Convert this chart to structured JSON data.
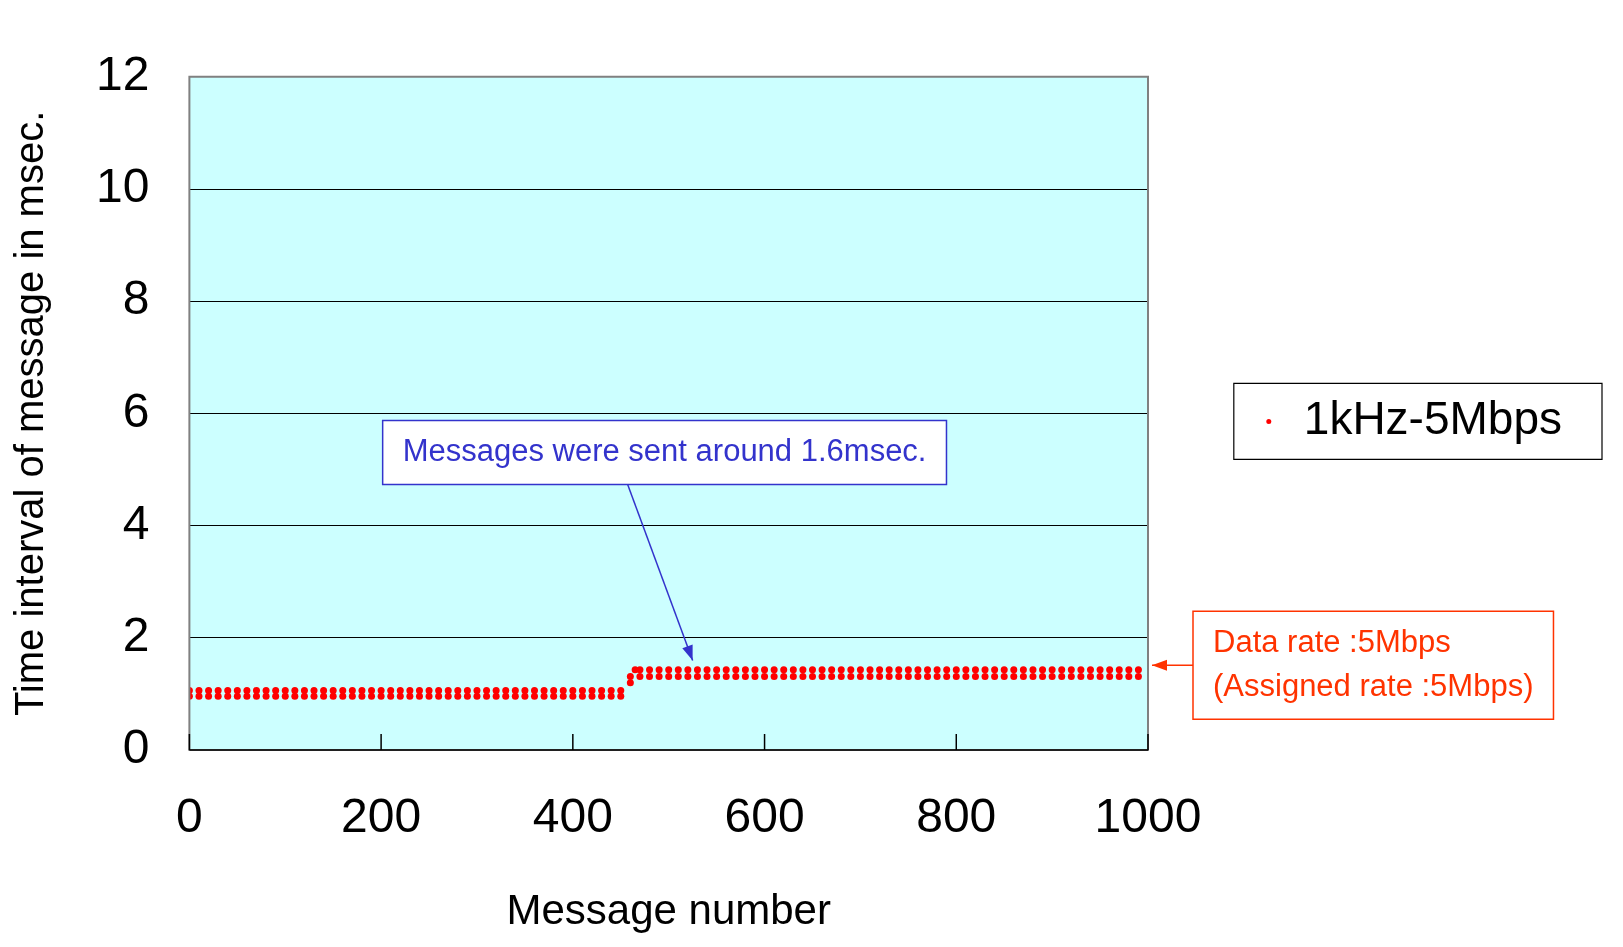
{
  "chart_data": {
    "type": "scatter",
    "xlabel": "Message number",
    "ylabel": "Time interval of message in msec.",
    "xlim": [
      0,
      1000
    ],
    "xticks": [
      0,
      200,
      400,
      600,
      800,
      1000
    ],
    "ylim": [
      0,
      12
    ],
    "yticks": [
      0,
      2,
      4,
      6,
      8,
      10,
      12
    ],
    "grid": "y",
    "legend": "right",
    "marker": "circle",
    "annotations": [
      "Messages were sent around 1.6msec.",
      "Data rate :5Mbps\n(Assigned rate :5Mbps)"
    ],
    "series": [
      {
        "name": "1kHz-5Mbps",
        "color": "#ff0000",
        "x": [
          0,
          0,
          10,
          10,
          20,
          20,
          30,
          30,
          40,
          40,
          50,
          50,
          60,
          60,
          70,
          70,
          80,
          80,
          90,
          90,
          100,
          100,
          110,
          110,
          120,
          120,
          130,
          130,
          140,
          140,
          150,
          150,
          160,
          160,
          170,
          170,
          180,
          180,
          190,
          190,
          200,
          200,
          210,
          210,
          220,
          220,
          230,
          230,
          240,
          240,
          250,
          250,
          260,
          260,
          270,
          270,
          280,
          280,
          290,
          290,
          300,
          300,
          310,
          310,
          320,
          320,
          330,
          330,
          340,
          340,
          350,
          350,
          360,
          360,
          370,
          370,
          380,
          380,
          390,
          390,
          400,
          400,
          410,
          410,
          420,
          420,
          430,
          430,
          440,
          440,
          450,
          450,
          460,
          460,
          465,
          470,
          470,
          480,
          480,
          490,
          490,
          500,
          500,
          510,
          510,
          520,
          520,
          530,
          530,
          540,
          540,
          550,
          550,
          560,
          560,
          570,
          570,
          580,
          580,
          590,
          590,
          600,
          600,
          610,
          610,
          620,
          620,
          630,
          630,
          640,
          640,
          650,
          650,
          660,
          660,
          670,
          670,
          680,
          680,
          690,
          690,
          700,
          700,
          710,
          710,
          720,
          720,
          730,
          730,
          740,
          740,
          750,
          750,
          760,
          760,
          770,
          770,
          780,
          780,
          790,
          790,
          800,
          800,
          810,
          810,
          820,
          820,
          830,
          830,
          840,
          840,
          850,
          850,
          860,
          860,
          870,
          870,
          880,
          880,
          890,
          890,
          900,
          900,
          910,
          910,
          920,
          920,
          930,
          930,
          940,
          940,
          950,
          950,
          960,
          960,
          970,
          970,
          980,
          980,
          990,
          990
        ],
        "values": [
          0.96,
          1.06,
          0.96,
          1.06,
          0.96,
          1.06,
          0.96,
          1.06,
          0.96,
          1.06,
          0.96,
          1.06,
          0.96,
          1.06,
          0.96,
          1.06,
          0.96,
          1.06,
          0.96,
          1.06,
          0.96,
          1.06,
          0.96,
          1.06,
          0.96,
          1.06,
          0.96,
          1.06,
          0.96,
          1.06,
          0.96,
          1.06,
          0.96,
          1.06,
          0.96,
          1.06,
          0.96,
          1.06,
          0.96,
          1.06,
          0.96,
          1.06,
          0.96,
          1.06,
          0.96,
          1.06,
          0.96,
          1.06,
          0.96,
          1.06,
          0.96,
          1.06,
          0.96,
          1.06,
          0.96,
          1.06,
          0.96,
          1.06,
          0.96,
          1.06,
          0.96,
          1.06,
          0.96,
          1.06,
          0.96,
          1.06,
          0.96,
          1.06,
          0.96,
          1.06,
          0.96,
          1.06,
          0.96,
          1.06,
          0.96,
          1.06,
          0.96,
          1.06,
          0.96,
          1.06,
          0.96,
          1.06,
          0.96,
          1.06,
          0.96,
          1.06,
          0.96,
          1.06,
          0.96,
          1.06,
          0.96,
          1.06,
          1.2,
          1.31,
          1.43,
          1.31,
          1.43,
          1.31,
          1.43,
          1.31,
          1.43,
          1.31,
          1.43,
          1.31,
          1.43,
          1.31,
          1.43,
          1.31,
          1.43,
          1.31,
          1.43,
          1.31,
          1.43,
          1.31,
          1.43,
          1.31,
          1.43,
          1.31,
          1.43,
          1.31,
          1.43,
          1.31,
          1.43,
          1.31,
          1.43,
          1.31,
          1.43,
          1.31,
          1.43,
          1.31,
          1.43,
          1.31,
          1.43,
          1.31,
          1.43,
          1.31,
          1.43,
          1.31,
          1.43,
          1.31,
          1.43,
          1.31,
          1.43,
          1.31,
          1.43,
          1.31,
          1.43,
          1.31,
          1.43,
          1.31,
          1.43,
          1.31,
          1.43,
          1.31,
          1.43,
          1.31,
          1.43,
          1.31,
          1.43,
          1.31,
          1.43,
          1.31,
          1.43,
          1.31,
          1.43,
          1.31,
          1.43,
          1.31,
          1.43,
          1.31,
          1.43,
          1.31,
          1.43,
          1.31,
          1.43,
          1.31,
          1.43,
          1.31,
          1.43,
          1.31,
          1.43,
          1.31,
          1.43,
          1.31,
          1.43,
          1.31,
          1.43,
          1.31,
          1.43,
          1.31,
          1.43,
          1.31,
          1.43,
          1.31,
          1.43,
          1.31,
          1.43,
          1.31,
          1.43,
          1.31,
          1.43
        ]
      }
    ]
  }
}
